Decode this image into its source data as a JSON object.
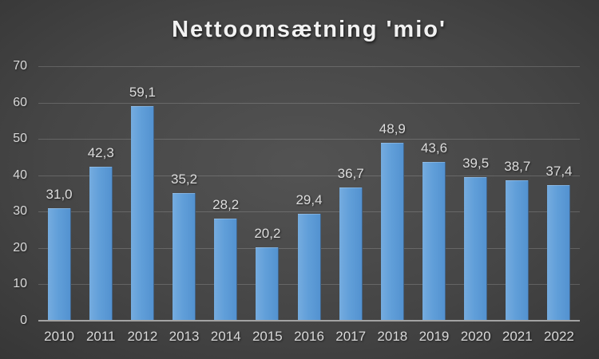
{
  "chart": {
    "title": "Nettoomsætning 'mio'",
    "colors": {
      "background_center": "#535353",
      "background_edge": "#242424",
      "bar_light": "#75acdf",
      "bar_dark": "#5392d0",
      "gridline": "rgba(255,255,255,0.17)",
      "axis_line": "#a3a3a3",
      "tick_label": "#d9d9d9",
      "value_label": "#dcdcdc",
      "title_text": "#f2f2f2"
    }
  },
  "chart_data": {
    "type": "bar",
    "title": "Nettoomsætning 'mio'",
    "categories": [
      "2010",
      "2011",
      "2012",
      "2013",
      "2014",
      "2015",
      "2016",
      "2017",
      "2018",
      "2019",
      "2020",
      "2021",
      "2022"
    ],
    "values": [
      31.0,
      42.3,
      59.1,
      35.2,
      28.2,
      20.2,
      29.4,
      36.7,
      48.9,
      43.6,
      39.5,
      38.7,
      37.4
    ],
    "value_labels": [
      "31,0",
      "42,3",
      "59,1",
      "35,2",
      "28,2",
      "20,2",
      "29,4",
      "36,7",
      "48,9",
      "43,6",
      "39,5",
      "38,7",
      "37,4"
    ],
    "xlabel": "",
    "ylabel": "",
    "ylim": [
      0,
      70
    ],
    "ytick_interval": 10,
    "ytick_labels": [
      "70",
      "60",
      "50",
      "40",
      "30",
      "20",
      "10",
      "0"
    ],
    "grid": true,
    "legend_position": "none",
    "decimal_separator": ","
  }
}
